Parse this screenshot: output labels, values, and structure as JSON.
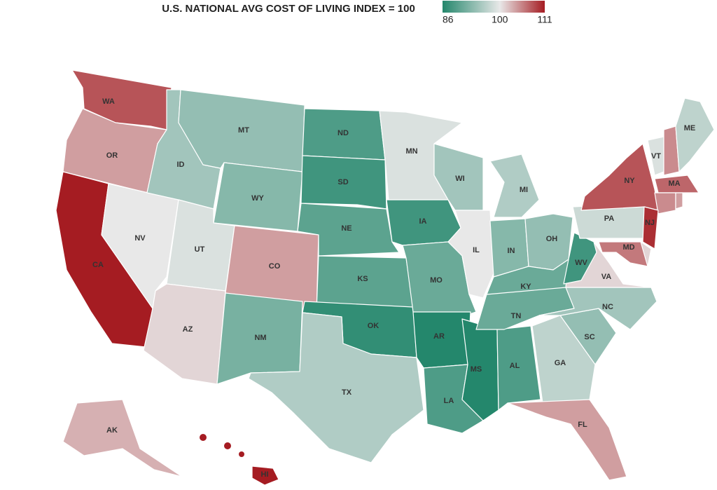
{
  "chart_data": {
    "type": "choropleth",
    "title": "U.S. NATIONAL AVG COST OF LIVING INDEX = 100",
    "colorscale": {
      "range": [
        86,
        111
      ],
      "ticks": [
        86,
        100,
        111
      ],
      "colors": [
        "#24876c",
        "#e8e8e8",
        "#a51c22"
      ]
    },
    "states": {
      "labels": [
        "WA",
        "OR",
        "CA",
        "NV",
        "ID",
        "MT",
        "WY",
        "UT",
        "CO",
        "AZ",
        "NM",
        "ND",
        "SD",
        "NE",
        "KS",
        "OK",
        "TX",
        "MN",
        "IA",
        "MO",
        "AR",
        "LA",
        "MS",
        "AL",
        "WI",
        "IL",
        "MI",
        "IN",
        "OH",
        "KY",
        "TN",
        "SC",
        "GA",
        "FL",
        "NC",
        "VA",
        "WV",
        "PA",
        "NY",
        "VT",
        null,
        "ME",
        "MA",
        null,
        null,
        "NJ",
        null,
        "MD",
        "AK",
        "HI"
      ],
      "values": [
        108,
        104,
        111,
        100,
        95,
        94,
        93,
        99,
        104,
        101,
        92,
        89,
        88,
        90,
        90,
        87,
        96,
        99,
        88,
        91,
        86,
        89,
        86,
        89,
        95,
        100,
        96,
        93,
        94,
        91,
        91,
        94,
        97,
        104,
        95,
        101,
        88,
        98,
        108,
        99,
        105,
        97,
        107,
        105,
        104,
        110,
        101,
        106,
        103,
        111
      ]
    }
  }
}
